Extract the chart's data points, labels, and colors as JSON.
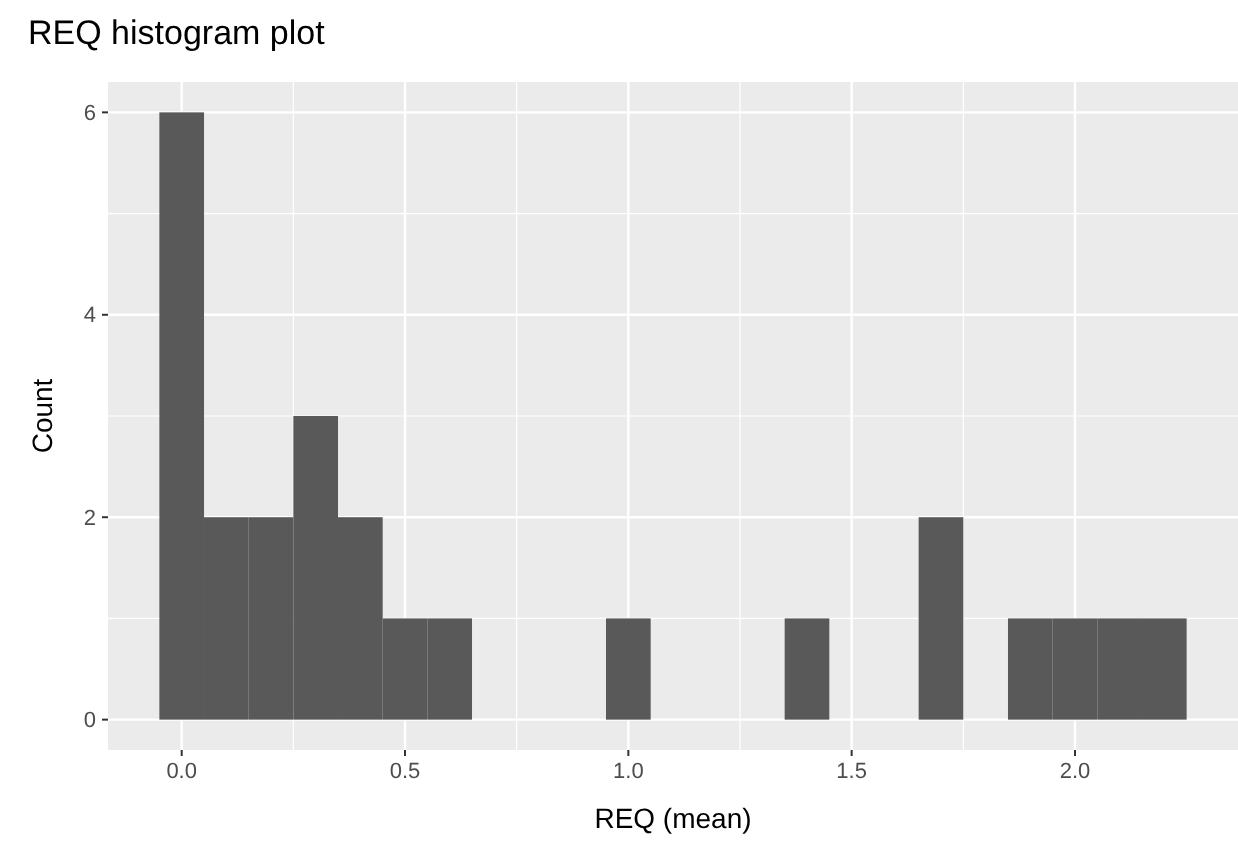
{
  "chart_data": {
    "type": "histogram",
    "title": "REQ histogram plot",
    "xlabel": "REQ (mean)",
    "ylabel": "Count",
    "bins": [
      -0.05,
      0.05,
      0.15,
      0.25,
      0.35,
      0.45,
      0.55,
      0.65,
      0.75,
      0.85,
      0.95,
      1.05,
      1.15,
      1.25,
      1.35,
      1.45,
      1.55,
      1.65,
      1.75,
      1.85,
      1.95,
      2.05,
      2.15,
      2.25
    ],
    "values": [
      6,
      2,
      2,
      3,
      2,
      1,
      1,
      0,
      0,
      0,
      1,
      0,
      0,
      0,
      1,
      0,
      0,
      2,
      0,
      1,
      1,
      1,
      1
    ],
    "color": "#595959",
    "xlim": [
      -0.165,
      2.365
    ],
    "ylim": [
      -0.3,
      6.3
    ],
    "xticks": [
      {
        "value": 0,
        "label": "0.0"
      },
      {
        "value": 0.5,
        "label": "0.5"
      },
      {
        "value": 1,
        "label": "1.0"
      },
      {
        "value": 1.5,
        "label": "1.5"
      },
      {
        "value": 2,
        "label": "2.0"
      }
    ],
    "yticks": [
      0,
      2,
      4,
      6
    ],
    "grid": true
  }
}
